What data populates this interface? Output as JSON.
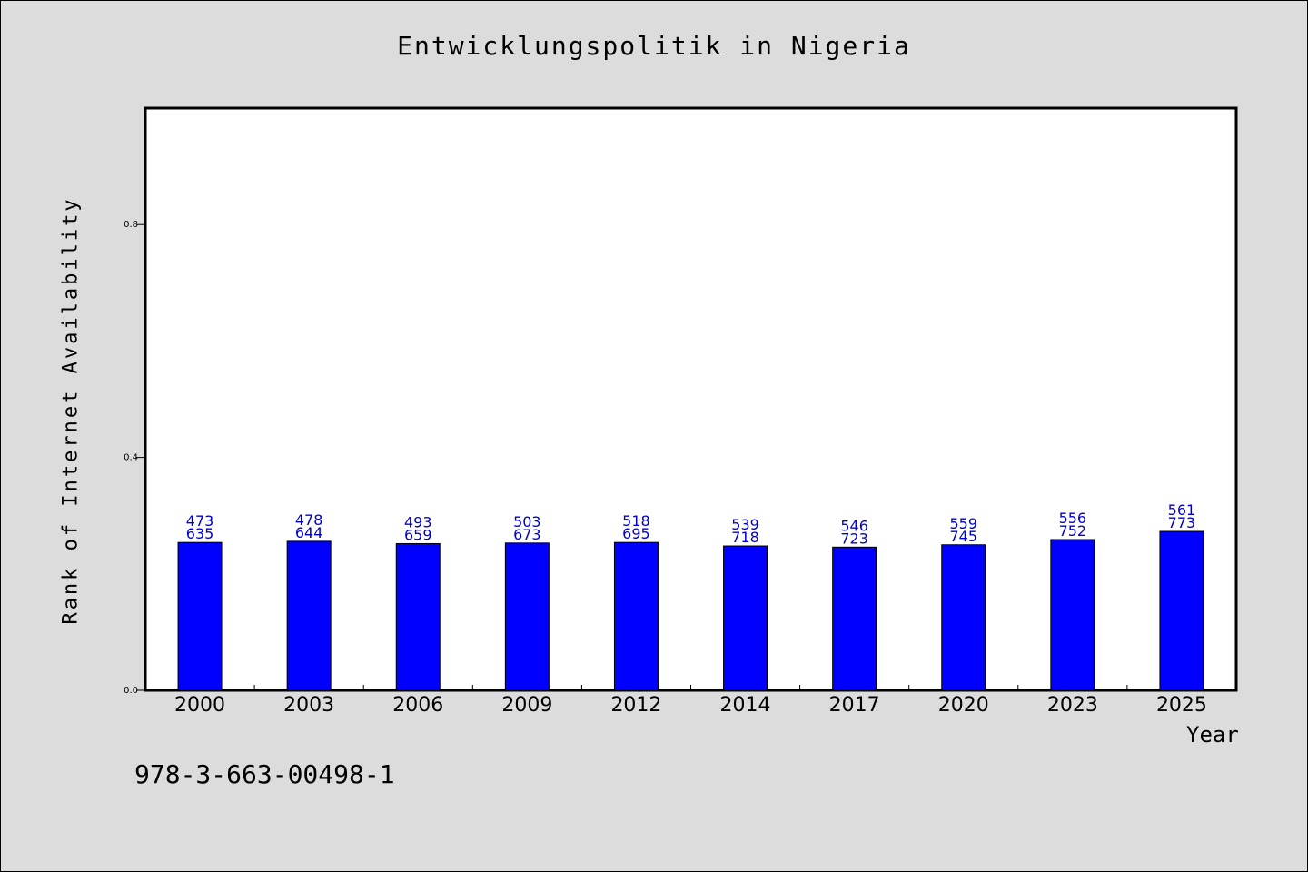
{
  "chart_data": {
    "type": "bar",
    "title": "Entwicklungspolitik in Nigeria",
    "xlabel": "Year",
    "ylabel": "Rank of Internet Availability",
    "ylim": [
      0,
      1.0
    ],
    "yticks": [
      "0.0",
      "0.4",
      "0.8"
    ],
    "ytick_values": [
      0.0,
      0.4,
      0.8
    ],
    "categories": [
      "2000",
      "2003",
      "2006",
      "2009",
      "2012",
      "2014",
      "2017",
      "2020",
      "2023",
      "2025"
    ],
    "values": [
      0.254,
      0.256,
      0.252,
      0.253,
      0.254,
      0.248,
      0.246,
      0.25,
      0.259,
      0.273
    ],
    "bar_labels_top": [
      "473",
      "478",
      "493",
      "503",
      "518",
      "539",
      "546",
      "559",
      "556",
      "561"
    ],
    "bar_labels_bottom": [
      "635",
      "644",
      "659",
      "673",
      "695",
      "718",
      "723",
      "745",
      "752",
      "773"
    ],
    "bar_color": "#0000ff",
    "label_color": "#0000cc",
    "grid": false,
    "legend": "none"
  },
  "footer": {
    "isbn": "978-3-663-00498-1"
  }
}
